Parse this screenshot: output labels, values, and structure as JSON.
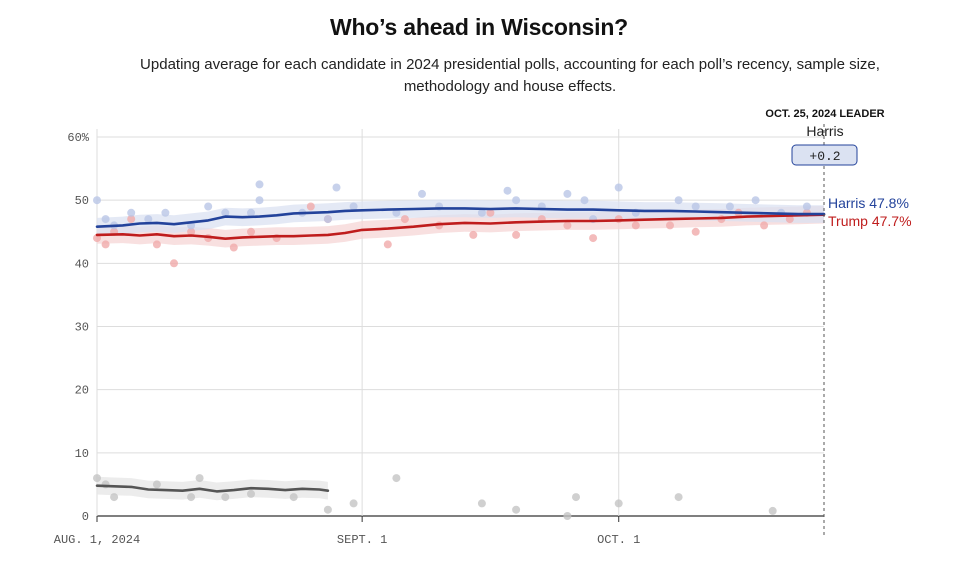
{
  "header": {
    "title": "Who’s ahead in Wisconsin?",
    "subtitle": "Updating average for each candidate in 2024 presidential polls, accounting for each poll’s recency, sample size, methodology and house effects."
  },
  "leader": {
    "heading": "OCT. 25, 2024 LEADER",
    "name": "Harris",
    "margin": "+0.2"
  },
  "colors": {
    "harris": "#23439b",
    "harris_band": "#dbe2f2",
    "harris_dot": "#b9c6e6",
    "trump": "#bf1d1d",
    "trump_band": "#f6d5d5",
    "trump_dot": "#f0aaaa",
    "other": "#555555",
    "other_band": "#e6e6e6",
    "other_dot": "#c4c4c4",
    "grid": "#dddddd",
    "axis": "#333333"
  },
  "chart_data": {
    "type": "line",
    "x_domain": [
      "2024-08-01",
      "2024-10-25"
    ],
    "ylim": [
      0,
      60
    ],
    "y_ticks": [
      {
        "value": 0,
        "label": "0"
      },
      {
        "value": 10,
        "label": "10"
      },
      {
        "value": 20,
        "label": "20"
      },
      {
        "value": 30,
        "label": "30"
      },
      {
        "value": 40,
        "label": "40"
      },
      {
        "value": 50,
        "label": "50"
      },
      {
        "value": 60,
        "label": "60%"
      }
    ],
    "x_ticks": [
      {
        "date": "2024-08-01",
        "label": "AUG. 1, 2024"
      },
      {
        "date": "2024-09-01",
        "label": "SEPT. 1"
      },
      {
        "date": "2024-10-01",
        "label": "OCT. 1"
      }
    ],
    "grid": true,
    "series": [
      {
        "name": "Harris",
        "end_label": "Harris 47.8%",
        "color_key": "harris",
        "band": 1.4,
        "line": [
          [
            "2024-08-01",
            45.8
          ],
          [
            "2024-08-04",
            46.0
          ],
          [
            "2024-08-06",
            46.3
          ],
          [
            "2024-08-08",
            46.4
          ],
          [
            "2024-08-10",
            46.2
          ],
          [
            "2024-08-12",
            46.5
          ],
          [
            "2024-08-14",
            46.8
          ],
          [
            "2024-08-16",
            47.4
          ],
          [
            "2024-08-18",
            47.3
          ],
          [
            "2024-08-20",
            47.4
          ],
          [
            "2024-08-22",
            47.6
          ],
          [
            "2024-08-24",
            47.9
          ],
          [
            "2024-08-26",
            48.0
          ],
          [
            "2024-08-28",
            48.1
          ],
          [
            "2024-08-30",
            48.3
          ],
          [
            "2024-09-01",
            48.4
          ],
          [
            "2024-09-04",
            48.5
          ],
          [
            "2024-09-07",
            48.6
          ],
          [
            "2024-09-10",
            48.7
          ],
          [
            "2024-09-13",
            48.7
          ],
          [
            "2024-09-16",
            48.6
          ],
          [
            "2024-09-19",
            48.7
          ],
          [
            "2024-09-22",
            48.6
          ],
          [
            "2024-09-25",
            48.5
          ],
          [
            "2024-09-28",
            48.5
          ],
          [
            "2024-10-01",
            48.4
          ],
          [
            "2024-10-04",
            48.3
          ],
          [
            "2024-10-07",
            48.3
          ],
          [
            "2024-10-10",
            48.2
          ],
          [
            "2024-10-13",
            48.1
          ],
          [
            "2024-10-16",
            48.0
          ],
          [
            "2024-10-19",
            47.9
          ],
          [
            "2024-10-22",
            47.8
          ],
          [
            "2024-10-25",
            47.8
          ]
        ],
        "polls": [
          [
            "2024-08-01",
            50
          ],
          [
            "2024-08-02",
            47
          ],
          [
            "2024-08-03",
            46
          ],
          [
            "2024-08-05",
            48
          ],
          [
            "2024-08-07",
            47
          ],
          [
            "2024-08-09",
            48
          ],
          [
            "2024-08-12",
            46
          ],
          [
            "2024-08-14",
            49
          ],
          [
            "2024-08-16",
            48
          ],
          [
            "2024-08-19",
            48
          ],
          [
            "2024-08-20",
            52.5
          ],
          [
            "2024-08-20",
            50
          ],
          [
            "2024-08-25",
            48
          ],
          [
            "2024-08-28",
            47
          ],
          [
            "2024-08-29",
            52
          ],
          [
            "2024-08-31",
            49
          ],
          [
            "2024-09-05",
            48
          ],
          [
            "2024-09-08",
            51
          ],
          [
            "2024-09-10",
            49
          ],
          [
            "2024-09-15",
            48
          ],
          [
            "2024-09-18",
            51.5
          ],
          [
            "2024-09-19",
            50
          ],
          [
            "2024-09-22",
            49
          ],
          [
            "2024-09-25",
            51
          ],
          [
            "2024-09-27",
            50
          ],
          [
            "2024-09-28",
            47
          ],
          [
            "2024-10-01",
            52
          ],
          [
            "2024-10-03",
            48
          ],
          [
            "2024-10-08",
            50
          ],
          [
            "2024-10-10",
            49
          ],
          [
            "2024-10-14",
            49
          ],
          [
            "2024-10-17",
            50
          ],
          [
            "2024-10-20",
            48
          ],
          [
            "2024-10-23",
            49
          ]
        ]
      },
      {
        "name": "Trump",
        "end_label": "Trump 47.7%",
        "color_key": "trump",
        "band": 1.4,
        "line": [
          [
            "2024-08-01",
            44.5
          ],
          [
            "2024-08-04",
            44.6
          ],
          [
            "2024-08-06",
            44.4
          ],
          [
            "2024-08-08",
            44.6
          ],
          [
            "2024-08-10",
            44.3
          ],
          [
            "2024-08-12",
            44.4
          ],
          [
            "2024-08-14",
            44.2
          ],
          [
            "2024-08-16",
            43.9
          ],
          [
            "2024-08-18",
            44.1
          ],
          [
            "2024-08-20",
            44.2
          ],
          [
            "2024-08-22",
            44.3
          ],
          [
            "2024-08-24",
            44.3
          ],
          [
            "2024-08-26",
            44.4
          ],
          [
            "2024-08-28",
            44.5
          ],
          [
            "2024-08-30",
            44.8
          ],
          [
            "2024-09-01",
            45.3
          ],
          [
            "2024-09-04",
            45.5
          ],
          [
            "2024-09-07",
            45.8
          ],
          [
            "2024-09-10",
            46.2
          ],
          [
            "2024-09-13",
            46.4
          ],
          [
            "2024-09-16",
            46.3
          ],
          [
            "2024-09-19",
            46.5
          ],
          [
            "2024-09-22",
            46.6
          ],
          [
            "2024-09-25",
            46.7
          ],
          [
            "2024-09-28",
            46.7
          ],
          [
            "2024-10-01",
            46.8
          ],
          [
            "2024-10-04",
            46.9
          ],
          [
            "2024-10-07",
            47.0
          ],
          [
            "2024-10-10",
            47.1
          ],
          [
            "2024-10-13",
            47.2
          ],
          [
            "2024-10-16",
            47.4
          ],
          [
            "2024-10-19",
            47.5
          ],
          [
            "2024-10-22",
            47.6
          ],
          [
            "2024-10-25",
            47.7
          ]
        ],
        "polls": [
          [
            "2024-08-01",
            44
          ],
          [
            "2024-08-02",
            43
          ],
          [
            "2024-08-03",
            45
          ],
          [
            "2024-08-05",
            47
          ],
          [
            "2024-08-08",
            43
          ],
          [
            "2024-08-10",
            40
          ],
          [
            "2024-08-12",
            45
          ],
          [
            "2024-08-14",
            44
          ],
          [
            "2024-08-17",
            42.5
          ],
          [
            "2024-08-19",
            45
          ],
          [
            "2024-08-22",
            44
          ],
          [
            "2024-08-26",
            49
          ],
          [
            "2024-08-28",
            47
          ],
          [
            "2024-09-04",
            43
          ],
          [
            "2024-09-06",
            47
          ],
          [
            "2024-09-10",
            46
          ],
          [
            "2024-09-14",
            44.5
          ],
          [
            "2024-09-16",
            48
          ],
          [
            "2024-09-19",
            44.5
          ],
          [
            "2024-09-22",
            47
          ],
          [
            "2024-09-25",
            46
          ],
          [
            "2024-09-28",
            44
          ],
          [
            "2024-10-01",
            47
          ],
          [
            "2024-10-03",
            46
          ],
          [
            "2024-10-07",
            46
          ],
          [
            "2024-10-10",
            45
          ],
          [
            "2024-10-13",
            47
          ],
          [
            "2024-10-15",
            48
          ],
          [
            "2024-10-18",
            46
          ],
          [
            "2024-10-21",
            47
          ],
          [
            "2024-10-23",
            48
          ]
        ]
      },
      {
        "name": "",
        "color_key": "other",
        "band": 1.4,
        "line": [
          [
            "2024-08-01",
            4.8
          ],
          [
            "2024-08-03",
            4.7
          ],
          [
            "2024-08-05",
            4.6
          ],
          [
            "2024-08-07",
            4.2
          ],
          [
            "2024-08-09",
            4.1
          ],
          [
            "2024-08-11",
            4.0
          ],
          [
            "2024-08-13",
            4.3
          ],
          [
            "2024-08-15",
            3.9
          ],
          [
            "2024-08-17",
            4.1
          ],
          [
            "2024-08-19",
            4.4
          ],
          [
            "2024-08-21",
            4.3
          ],
          [
            "2024-08-23",
            4.1
          ],
          [
            "2024-08-25",
            4.3
          ],
          [
            "2024-08-27",
            4.2
          ],
          [
            "2024-08-28",
            4.0
          ]
        ],
        "polls": [
          [
            "2024-08-01",
            6
          ],
          [
            "2024-08-02",
            5
          ],
          [
            "2024-08-03",
            3
          ],
          [
            "2024-08-08",
            5
          ],
          [
            "2024-08-12",
            3
          ],
          [
            "2024-08-13",
            6
          ],
          [
            "2024-08-16",
            3
          ],
          [
            "2024-08-19",
            3.5
          ],
          [
            "2024-08-24",
            3
          ],
          [
            "2024-08-28",
            1
          ],
          [
            "2024-09-05",
            6
          ],
          [
            "2024-09-15",
            2
          ],
          [
            "2024-09-19",
            1
          ],
          [
            "2024-09-25",
            0
          ],
          [
            "2024-09-26",
            3
          ],
          [
            "2024-10-01",
            2
          ],
          [
            "2024-10-08",
            3
          ],
          [
            "2024-10-19",
            0.8
          ],
          [
            "2024-08-31",
            2
          ]
        ]
      }
    ]
  }
}
